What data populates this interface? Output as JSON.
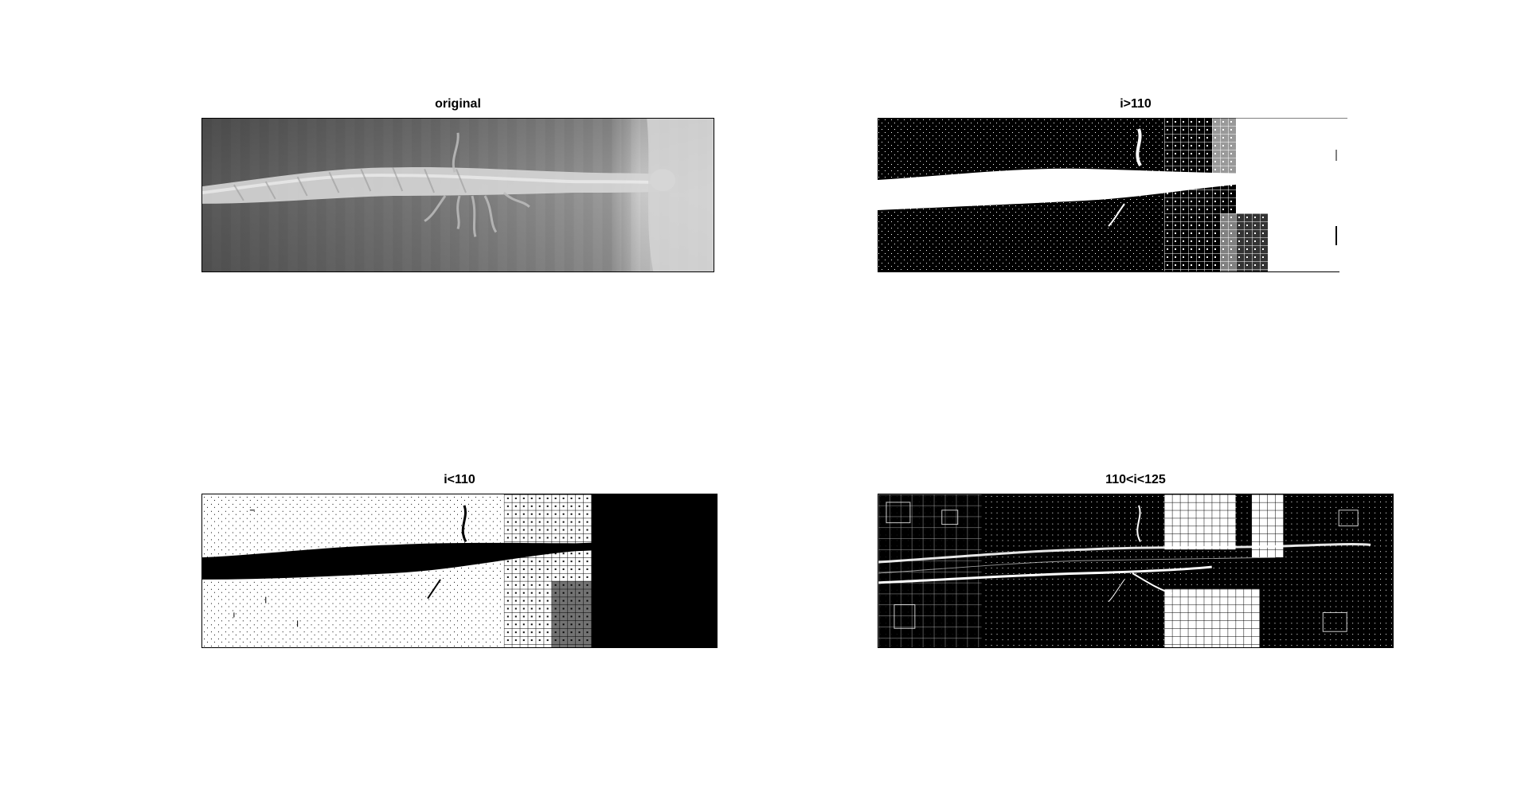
{
  "figure": {
    "panels": [
      {
        "title": "original",
        "kind": "grayscale"
      },
      {
        "title": "i>110",
        "kind": "threshold-above"
      },
      {
        "title": "i<110",
        "kind": "threshold-below"
      },
      {
        "title": "110<i<125",
        "kind": "threshold-band"
      }
    ]
  },
  "colors": {
    "background": "#ffffff",
    "foreground": "#000000",
    "gray_dark": "#6e6e6e",
    "gray_light": "#c8c8c8"
  }
}
